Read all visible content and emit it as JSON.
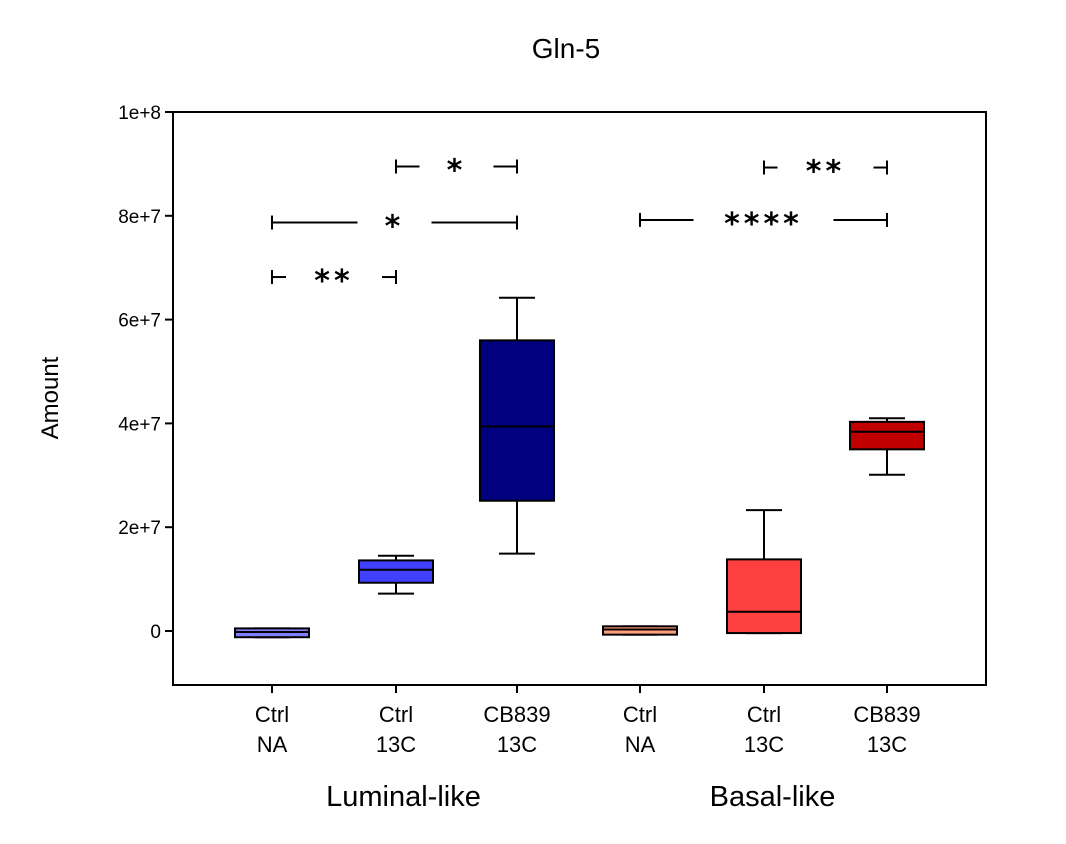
{
  "chart_data": {
    "type": "box",
    "title": "Gln-5",
    "ylabel": "Amount",
    "xlabel": "",
    "ylim": [
      -10000000,
      100000000
    ],
    "yticks": [
      {
        "value": 0,
        "label": "0"
      },
      {
        "value": 20000000,
        "label": "2e+7"
      },
      {
        "value": 40000000,
        "label": "4e+7"
      },
      {
        "value": 60000000,
        "label": "6e+7"
      },
      {
        "value": 80000000,
        "label": "8e+7"
      },
      {
        "value": 100000000,
        "label": "1e+8"
      }
    ],
    "groups": [
      {
        "name": "Luminal-like",
        "members": [
          0,
          1,
          2
        ]
      },
      {
        "name": "Basal-like",
        "members": [
          3,
          4,
          5
        ]
      }
    ],
    "boxes": [
      {
        "line1": "Ctrl",
        "line2": "NA",
        "color": "#8080FF",
        "min": -1200000,
        "q1": -1200000,
        "median": -200000,
        "q3": 500000,
        "max": 500000
      },
      {
        "line1": "Ctrl",
        "line2": "13C",
        "color": "#4040FF",
        "min": 7200000,
        "q1": 9300000,
        "median": 11800000,
        "q3": 13600000,
        "max": 14500000
      },
      {
        "line1": "CB839",
        "line2": "13C",
        "color": "#000080",
        "min": 14900000,
        "q1": 25100000,
        "median": 39400000,
        "q3": 56000000,
        "max": 64200000
      },
      {
        "line1": "Ctrl",
        "line2": "NA",
        "color": "#FFA07A",
        "min": -700000,
        "q1": -700000,
        "median": 300000,
        "q3": 900000,
        "max": 900000
      },
      {
        "line1": "Ctrl",
        "line2": "13C",
        "color": "#FF4040",
        "min": -400000,
        "q1": -400000,
        "median": 3700000,
        "q3": 13800000,
        "max": 23300000
      },
      {
        "line1": "CB839",
        "line2": "13C",
        "color": "#C00000",
        "min": 30100000,
        "q1": 35000000,
        "median": 38400000,
        "q3": 40300000,
        "max": 41000000
      }
    ],
    "significance": [
      {
        "from": 0,
        "to": 1,
        "y": 68200000,
        "label": "**"
      },
      {
        "from": 0,
        "to": 2,
        "y": 78700000,
        "label": "*"
      },
      {
        "from": 1,
        "to": 2,
        "y": 89500000,
        "label": "*"
      },
      {
        "from": 3,
        "to": 5,
        "y": 79200000,
        "label": "****"
      },
      {
        "from": 4,
        "to": 5,
        "y": 89300000,
        "label": "**"
      }
    ]
  }
}
